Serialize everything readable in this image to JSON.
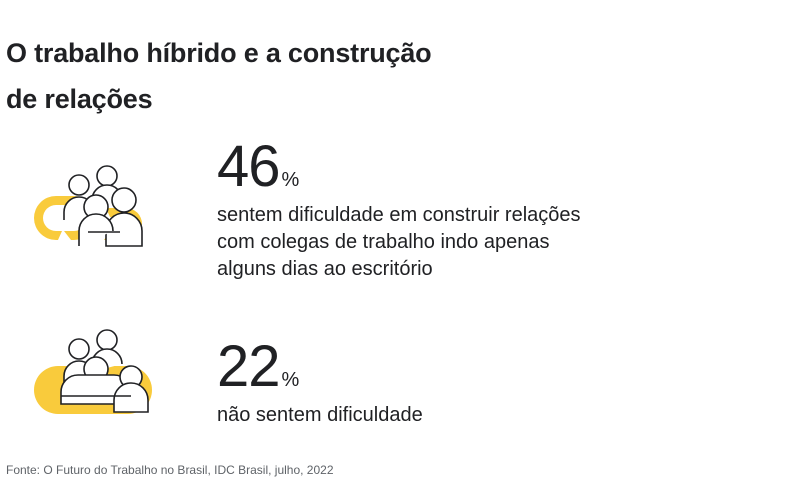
{
  "title": {
    "line1": "O trabalho híbrido e a construção",
    "line2": "de relações"
  },
  "stats": [
    {
      "value": "46",
      "unit": "%",
      "lines": [
        "sentem dificuldade em construir relações",
        "com colegas de trabalho indo apenas",
        "alguns dias ao escritório"
      ],
      "icon": "people-broken-link-icon"
    },
    {
      "value": "22",
      "unit": "%",
      "lines": [
        "não sentem dificuldade"
      ],
      "icon": "people-connected-link-icon"
    }
  ],
  "source": "Fonte: O Futuro do Trabalho no Brasil, IDC Brasil, julho, 2022",
  "colors": {
    "accent": "#F9CB3C",
    "text": "#202124",
    "muted": "#5f6368"
  }
}
